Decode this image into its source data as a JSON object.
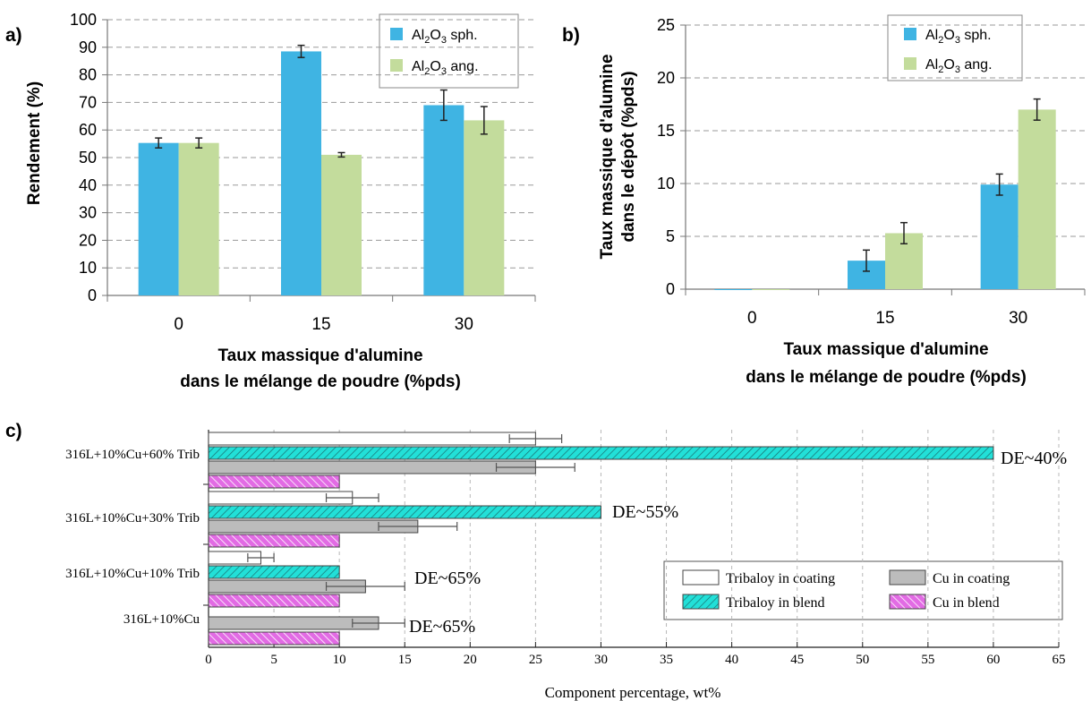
{
  "chart_data": [
    {
      "panel_label": "a)",
      "type": "bar",
      "categories": [
        "0",
        "15",
        "30"
      ],
      "series": [
        {
          "name": "Al2O3 sph.",
          "values": [
            55.3,
            88.5,
            69.0
          ],
          "errors": [
            1.8,
            2.2,
            5.5
          ],
          "color": "#3fb4e3"
        },
        {
          "name": "Al2O3 ang.",
          "values": [
            55.3,
            51.0,
            63.5
          ],
          "errors": [
            1.8,
            0.8,
            5.0
          ],
          "color": "#c3dc9c"
        }
      ],
      "ylabel": "Rendement (%)",
      "xlabel_lines": [
        "Taux massique d'alumine",
        "dans le mélange de poudre (%pds)"
      ],
      "ylim": [
        0,
        100
      ],
      "yticks": [
        "0",
        "10",
        "20",
        "30",
        "40",
        "50",
        "60",
        "70",
        "80",
        "90",
        "100"
      ],
      "grid": "horizontal dashed",
      "legend_position": "top-right"
    },
    {
      "panel_label": "b)",
      "type": "bar",
      "categories": [
        "0",
        "15",
        "30"
      ],
      "series": [
        {
          "name": "Al2O3 sph.",
          "values": [
            0,
            2.7,
            9.9
          ],
          "errors": [
            0,
            1.0,
            1.0
          ],
          "color": "#3fb4e3"
        },
        {
          "name": "Al2O3 ang.",
          "values": [
            0,
            5.3,
            17.0
          ],
          "errors": [
            0,
            1.0,
            1.0
          ],
          "color": "#c3dc9c"
        }
      ],
      "ylabel_lines": [
        "Taux massique d'alumine",
        "dans le dépôt (%pds)"
      ],
      "xlabel_lines": [
        "Taux massique d'alumine",
        "dans le mélange de poudre (%pds)"
      ],
      "ylim": [
        0,
        25
      ],
      "yticks": [
        "0",
        "5",
        "10",
        "15",
        "20",
        "25"
      ],
      "grid": "horizontal dashed",
      "legend_position": "top-right"
    },
    {
      "panel_label": "c)",
      "type": "bar",
      "orientation": "horizontal",
      "categories": [
        "316L+10%Cu+60% Trib",
        "316L+10%Cu+30% Trib",
        "316L+10%Cu+10% Trib",
        "316L+10%Cu"
      ],
      "series": [
        {
          "name": "Tribaloy in coating",
          "values": [
            25,
            11,
            4,
            null
          ],
          "errors": [
            2,
            2,
            1,
            null
          ],
          "color": "#ffffff"
        },
        {
          "name": "Tribaloy in blend",
          "values": [
            60,
            30,
            10,
            null
          ],
          "errors": [
            null,
            null,
            null,
            null
          ],
          "color": "#22e0d8"
        },
        {
          "name": "Cu in coating",
          "values": [
            25,
            16,
            12,
            13
          ],
          "errors": [
            3,
            3,
            3,
            2
          ],
          "color": "#bcbcbc"
        },
        {
          "name": "Cu in blend",
          "values": [
            10,
            10,
            10,
            10
          ],
          "errors": [
            null,
            null,
            null,
            null
          ],
          "color": "#e26be4"
        }
      ],
      "annotations": [
        "DE~40%",
        "DE~55%",
        "DE~65%",
        "DE~65%"
      ],
      "xlabel": "Component percentage, wt%",
      "xlim": [
        0,
        65
      ],
      "xticks": [
        "0",
        "5",
        "10",
        "15",
        "20",
        "25",
        "30",
        "35",
        "40",
        "45",
        "50",
        "55",
        "60",
        "65"
      ],
      "grid": "vertical dashed",
      "legend_position": "bottom-right"
    }
  ]
}
